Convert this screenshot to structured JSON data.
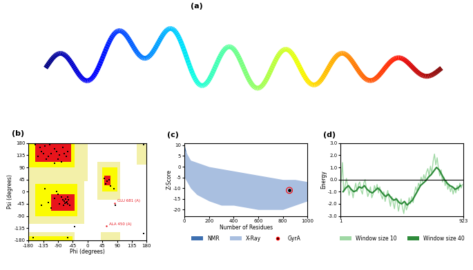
{
  "chart_data": [
    {
      "type": "image",
      "panel": "(a)"
    },
    {
      "type": "scatter",
      "panel": "(b)",
      "x_label": "Phi (degrees)",
      "y_label": "Psi (degrees)",
      "color": "#000000",
      "marker": "s",
      "regions": [
        {
          "color": "#f3f0a9",
          "x": [
            -180,
            0
          ],
          "y": [
            40,
            180
          ]
        },
        {
          "color": "#f3f0a9",
          "x": [
            -180,
            -10
          ],
          "y": [
            -120,
            40
          ]
        },
        {
          "color": "#f3f0a9",
          "x": [
            30,
            100
          ],
          "y": [
            -30,
            110
          ]
        },
        {
          "color": "#f3f0a9",
          "x": [
            -180,
            -40
          ],
          "y": [
            -180,
            -150
          ]
        },
        {
          "color": "#f3f0a9",
          "x": [
            150,
            180
          ],
          "y": [
            100,
            180
          ]
        },
        {
          "color": "#f3f0a9",
          "x": [
            40,
            100
          ],
          "y": [
            -180,
            -150
          ]
        },
        {
          "color": "#fbfb00",
          "x": [
            -180,
            -40
          ],
          "y": [
            90,
            180
          ]
        },
        {
          "color": "#fbfb00",
          "x": [
            -160,
            -30
          ],
          "y": [
            -90,
            30
          ]
        },
        {
          "color": "#fbfb00",
          "x": [
            45,
            90
          ],
          "y": [
            0,
            90
          ]
        },
        {
          "color": "#fbfb00",
          "x": [
            -180,
            -45
          ],
          "y": [
            -180,
            -165
          ]
        },
        {
          "color": "#e8141c",
          "x": [
            -160,
            -50
          ],
          "y": [
            110,
            180
          ]
        },
        {
          "color": "#e8141c",
          "x": [
            -110,
            -40
          ],
          "y": [
            -70,
            -10
          ]
        },
        {
          "color": "#e8141c",
          "x": [
            50,
            70
          ],
          "y": [
            25,
            60
          ]
        }
      ],
      "x": [
        -120,
        -90,
        -140,
        -70,
        -100,
        -130,
        -60,
        -150,
        -80,
        -110,
        -125,
        -95,
        -75,
        -145,
        -160,
        -100,
        -65,
        -135,
        -85,
        -115,
        -65,
        -60,
        -70,
        -55,
        -75,
        -80,
        -90,
        -62,
        -68,
        -58,
        -100,
        -85,
        -120,
        -110,
        -95,
        -60,
        -72,
        -66,
        -140,
        -130,
        60,
        55,
        70,
        65,
        80,
        50,
        -165,
        -60,
        170,
        -40,
        85,
        170
      ],
      "values": [
        130,
        120,
        150,
        140,
        160,
        170,
        150,
        130,
        110,
        140,
        120,
        150,
        165,
        165,
        175,
        105,
        130,
        140,
        135,
        175,
        -40,
        -45,
        -35,
        -50,
        -30,
        -20,
        -10,
        -38,
        -42,
        -30,
        -25,
        -45,
        -40,
        -60,
        0,
        -20,
        -50,
        -28,
        -50,
        10,
        40,
        30,
        20,
        45,
        10,
        50,
        -170,
        -170,
        175,
        -130,
        -50,
        -155
      ],
      "annotations": [
        {
          "text": "GLU 681 (A)",
          "x": 82,
          "y": -42,
          "color": "#e8141c"
        },
        {
          "text": "ALA 450 (A)",
          "x": 58,
          "y": -128,
          "color": "#e8141c"
        }
      ],
      "xlim": [
        -180,
        180
      ],
      "ylim": [
        -180,
        180
      ],
      "xticks": [
        -180,
        -135,
        -90,
        -45,
        0,
        45,
        90,
        135,
        180
      ],
      "yticks": [
        -180,
        -135,
        -90,
        -45,
        0,
        45,
        90,
        135,
        180
      ]
    },
    {
      "type": "scatter",
      "panel": "(c)",
      "x_label": "Number of Residues",
      "y_label": "Z-Score",
      "legend": "upper center",
      "series": [
        {
          "name": "NMR",
          "type": "band",
          "color": "#3d6fb0",
          "x": [
            0,
            25,
            50,
            100,
            150,
            200,
            250,
            300,
            350,
            400,
            450
          ],
          "high": [
            10,
            4,
            2,
            0,
            -1,
            -2,
            -3,
            -3.5,
            -4,
            -5,
            -6
          ],
          "low": [
            -3,
            -6,
            -8,
            -10,
            -11,
            -12,
            -12.5,
            -13,
            -13,
            -12,
            -11
          ]
        },
        {
          "name": "X-Ray",
          "type": "band",
          "color": "#a9bfe0",
          "x": [
            0,
            50,
            100,
            200,
            300,
            400,
            500,
            600,
            700,
            800,
            900,
            1000
          ],
          "high": [
            8,
            3,
            2,
            0,
            -1,
            -2,
            -3,
            -4,
            -5,
            -6,
            -6,
            -7
          ],
          "low": [
            -5,
            -10,
            -13,
            -16,
            -18,
            -18,
            -19,
            -20,
            -20,
            -20,
            -18,
            -16
          ]
        },
        {
          "name": "GyrA",
          "type": "scatter",
          "color": "#000000",
          "x": [
            853
          ],
          "values": [
            -11.04
          ]
        }
      ],
      "xlim": [
        0,
        1000
      ],
      "ylim": [
        -23,
        11
      ],
      "xticks": [
        0,
        200,
        400,
        600,
        800,
        1000
      ],
      "yticks": [
        -20,
        -15,
        -10,
        -5,
        0,
        5,
        10
      ]
    },
    {
      "type": "line",
      "panel": "(d)",
      "y_label": "Energy",
      "legend": "upper center",
      "reference_value": 0,
      "series": [
        {
          "name": "Window size 10",
          "type": "line",
          "color": "#9fd8a4",
          "x": [
            5,
            15,
            25,
            35,
            45,
            55,
            65,
            75,
            85,
            95,
            105,
            115,
            125,
            135,
            145,
            155,
            165,
            175,
            185,
            195,
            205,
            215,
            225,
            235,
            245,
            255,
            265,
            275,
            285,
            295,
            305,
            315,
            325,
            335,
            345,
            355,
            365,
            375,
            385,
            395,
            405,
            415,
            425,
            435,
            445,
            455,
            465,
            475,
            485,
            495,
            505,
            515,
            525,
            535,
            545,
            555,
            565,
            575,
            585,
            595,
            605,
            615,
            625,
            635,
            645,
            655,
            665,
            675,
            685,
            695,
            705,
            715,
            725,
            735,
            745,
            755,
            765,
            775,
            785,
            795,
            805,
            815,
            825,
            835,
            845,
            855,
            865,
            875,
            885,
            895,
            905,
            915
          ],
          "values": [
            -0.2,
            1.4,
            -1.0,
            -0.5,
            0.1,
            -0.6,
            -1.3,
            -0.7,
            -0.9,
            -1.5,
            -0.8,
            -0.3,
            -1.0,
            -0.4,
            -0.2,
            -0.9,
            -1.2,
            -0.3,
            0.0,
            -0.8,
            -1.4,
            -1.1,
            -0.6,
            -1.5,
            -1.2,
            -0.5,
            -0.9,
            -0.4,
            -1.1,
            -0.6,
            -1.3,
            -1.6,
            -1.0,
            -1.8,
            -1.3,
            -0.9,
            -1.6,
            -2.2,
            -1.4,
            -1.9,
            -2.4,
            -1.5,
            -1.8,
            -2.6,
            -2.0,
            -1.6,
            -2.3,
            -2.8,
            -1.9,
            -2.5,
            -2.2,
            -1.5,
            -2.0,
            -1.4,
            -1.9,
            -1.1,
            -0.6,
            -1.0,
            -0.3,
            -0.6,
            0.2,
            -0.2,
            0.4,
            0.0,
            0.6,
            0.9,
            0.3,
            1.1,
            0.5,
            1.5,
            2.1,
            1.2,
            1.8,
            0.9,
            0.3,
            0.8,
            -0.2,
            0.2,
            -0.5,
            -0.1,
            -0.8,
            -0.4,
            -1.0,
            -0.6,
            -1.2,
            -0.7,
            -1.1,
            -0.5,
            -0.9,
            -0.3,
            -0.7,
            -0.4
          ]
        },
        {
          "name": "Window size 40",
          "type": "line",
          "color": "#2e8b3a",
          "x": [
            20,
            40,
            60,
            80,
            100,
            120,
            140,
            160,
            180,
            200,
            220,
            240,
            260,
            280,
            300,
            320,
            340,
            360,
            380,
            400,
            420,
            440,
            460,
            480,
            500,
            520,
            540,
            560,
            580,
            600,
            620,
            640,
            660,
            680,
            700,
            720,
            740,
            760,
            780,
            800,
            820,
            840,
            860,
            880,
            900
          ],
          "values": [
            -1.0,
            -0.7,
            -0.5,
            -0.8,
            -1.0,
            -0.9,
            -0.6,
            -0.7,
            -0.5,
            -0.8,
            -1.0,
            -1.1,
            -0.9,
            -0.7,
            -0.9,
            -1.2,
            -1.4,
            -1.2,
            -1.5,
            -1.7,
            -1.6,
            -1.9,
            -2.0,
            -1.8,
            -2.1,
            -1.9,
            -1.7,
            -1.3,
            -0.9,
            -0.5,
            -0.3,
            -0.1,
            0.2,
            0.4,
            0.7,
            1.0,
            0.8,
            0.4,
            0.0,
            -0.3,
            -0.5,
            -0.6,
            -0.8,
            -0.7,
            -0.5
          ]
        }
      ],
      "xlim": [
        1,
        923
      ],
      "ylim": [
        -3,
        3
      ],
      "xticks": [
        1,
        923
      ],
      "yticks": [
        {
          "value": -3,
          "label": "-3.0"
        },
        {
          "value": -2,
          "label": "-2.0"
        },
        {
          "value": -1,
          "label": "-1.0"
        },
        {
          "value": 0,
          "label": "0.0"
        },
        {
          "value": 1,
          "label": "1.0"
        },
        {
          "value": 2,
          "label": "2.0"
        },
        {
          "value": 3,
          "label": "3.0"
        }
      ]
    }
  ]
}
